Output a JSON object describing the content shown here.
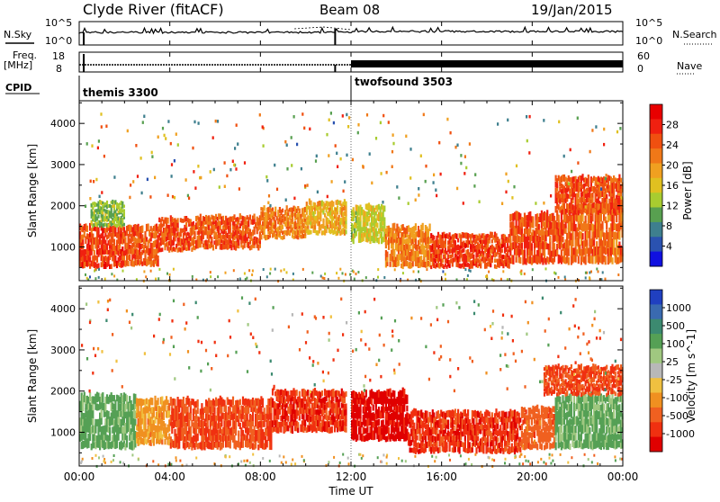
{
  "header": {
    "station": "Clyde River (fitACF)",
    "beam": "Beam 08",
    "date": "19/Jan/2015"
  },
  "top_panels": {
    "nsky_label": "N.Sky",
    "nsky_ticks": [
      "10^5",
      "10^0"
    ],
    "nsky_ticks_right": [
      "10^5",
      "10^0"
    ],
    "nsearch_label": "N.Search",
    "freq_label": "Freq.",
    "freq_unit": "[MHz]",
    "freq_ticks": [
      "18",
      "8"
    ],
    "nave_ticks": [
      "60",
      "0"
    ],
    "nave_label": "Nave",
    "cpid_label": "CPID",
    "cpid_items": [
      {
        "name": "themis 3300",
        "start_hour": 0
      },
      {
        "name": "twofsound 3503",
        "start_hour": 12
      }
    ]
  },
  "x_axis": {
    "label": "Time UT",
    "tick_labels": [
      "00:00",
      "04:00",
      "08:00",
      "12:00",
      "16:00",
      "20:00",
      "00:00"
    ],
    "tick_hours": [
      0,
      4,
      8,
      12,
      16,
      20,
      24
    ],
    "range": [
      0,
      24
    ]
  },
  "chart_data": [
    {
      "type": "heatmap",
      "name": "power",
      "ylabel": "Slant Range [km]",
      "y_ticks": [
        "1000",
        "2000",
        "3000",
        "4000"
      ],
      "y_tick_values": [
        1000,
        2000,
        3000,
        4000
      ],
      "ylim": [
        180,
        4550
      ],
      "xlim": [
        0,
        24
      ],
      "colorbar": {
        "label": "Power [dB]",
        "tick_labels": [
          "4",
          "8",
          "12",
          "16",
          "20",
          "24",
          "28"
        ],
        "tick_values": [
          4,
          8,
          12,
          16,
          20,
          24,
          28
        ],
        "range": [
          0,
          32
        ],
        "colors": [
          "#1010e0",
          "#2a52b0",
          "#3e7f8e",
          "#58a050",
          "#a8cc30",
          "#e0c020",
          "#f0a020",
          "#f07818",
          "#f05010",
          "#f02010",
          "#e80000"
        ]
      },
      "bands": [
        {
          "t0": 0.0,
          "t1": 2.0,
          "r0": 500,
          "r1": 1500,
          "value": 27
        },
        {
          "t0": 0.5,
          "t1": 2.0,
          "r0": 1500,
          "r1": 2100,
          "value": 12
        },
        {
          "t0": 2.0,
          "t1": 3.5,
          "r0": 550,
          "r1": 1500,
          "value": 25
        },
        {
          "t0": 3.5,
          "t1": 5.0,
          "r0": 900,
          "r1": 1700,
          "value": 26
        },
        {
          "t0": 5.0,
          "t1": 8.0,
          "r0": 950,
          "r1": 1750,
          "value": 25
        },
        {
          "t0": 8.0,
          "t1": 10.0,
          "r0": 1200,
          "r1": 1950,
          "value": 22
        },
        {
          "t0": 10.0,
          "t1": 11.8,
          "r0": 1300,
          "r1": 2100,
          "value": 18
        },
        {
          "t0": 12.0,
          "t1": 13.5,
          "r0": 1100,
          "r1": 2000,
          "value": 15
        },
        {
          "t0": 13.5,
          "t1": 15.5,
          "r0": 500,
          "r1": 1500,
          "value": 22
        },
        {
          "t0": 15.5,
          "t1": 19.0,
          "r0": 500,
          "r1": 1300,
          "value": 27
        },
        {
          "t0": 19.0,
          "t1": 21.5,
          "r0": 600,
          "r1": 1800,
          "value": 26
        },
        {
          "t0": 21.5,
          "t1": 24.0,
          "r0": 600,
          "r1": 2000,
          "value": 24
        },
        {
          "t0": 21.0,
          "t1": 24.0,
          "r0": 1800,
          "r1": 2700,
          "value": 26
        }
      ]
    },
    {
      "type": "heatmap",
      "name": "velocity",
      "ylabel": "Slant Range [km]",
      "y_ticks": [
        "1000",
        "2000",
        "3000",
        "4000"
      ],
      "y_tick_values": [
        1000,
        2000,
        3000,
        4000
      ],
      "ylim": [
        180,
        4550
      ],
      "xlim": [
        0,
        24
      ],
      "colorbar": {
        "label": "Velocity [m s^-1]",
        "tick_labels": [
          "1000",
          "500",
          "100",
          "25",
          "-25",
          "-100",
          "-500",
          "-1000"
        ],
        "colors": [
          "#2040c0",
          "#3a6ab0",
          "#3c8a70",
          "#55a055",
          "#a0c880",
          "#b8b8b8",
          "#f0c040",
          "#f09020",
          "#f06020",
          "#f03010",
          "#e00000"
        ]
      },
      "bands": [
        {
          "t0": 0.0,
          "t1": 2.5,
          "r0": 600,
          "r1": 1900,
          "value": 150
        },
        {
          "t0": 2.5,
          "t1": 4.0,
          "r0": 700,
          "r1": 1800,
          "value": -60
        },
        {
          "t0": 4.0,
          "t1": 8.5,
          "r0": 600,
          "r1": 1800,
          "value": -300
        },
        {
          "t0": 8.5,
          "t1": 11.8,
          "r0": 1000,
          "r1": 2000,
          "value": -400
        },
        {
          "t0": 12.0,
          "t1": 14.5,
          "r0": 800,
          "r1": 2000,
          "value": -700
        },
        {
          "t0": 14.5,
          "t1": 19.5,
          "r0": 500,
          "r1": 1500,
          "value": -400
        },
        {
          "t0": 19.5,
          "t1": 21.0,
          "r0": 600,
          "r1": 1600,
          "value": -200
        },
        {
          "t0": 21.0,
          "t1": 24.0,
          "r0": 600,
          "r1": 1900,
          "value": 150
        },
        {
          "t0": 20.5,
          "t1": 24.0,
          "r0": 1900,
          "r1": 2600,
          "value": -300
        }
      ]
    }
  ]
}
